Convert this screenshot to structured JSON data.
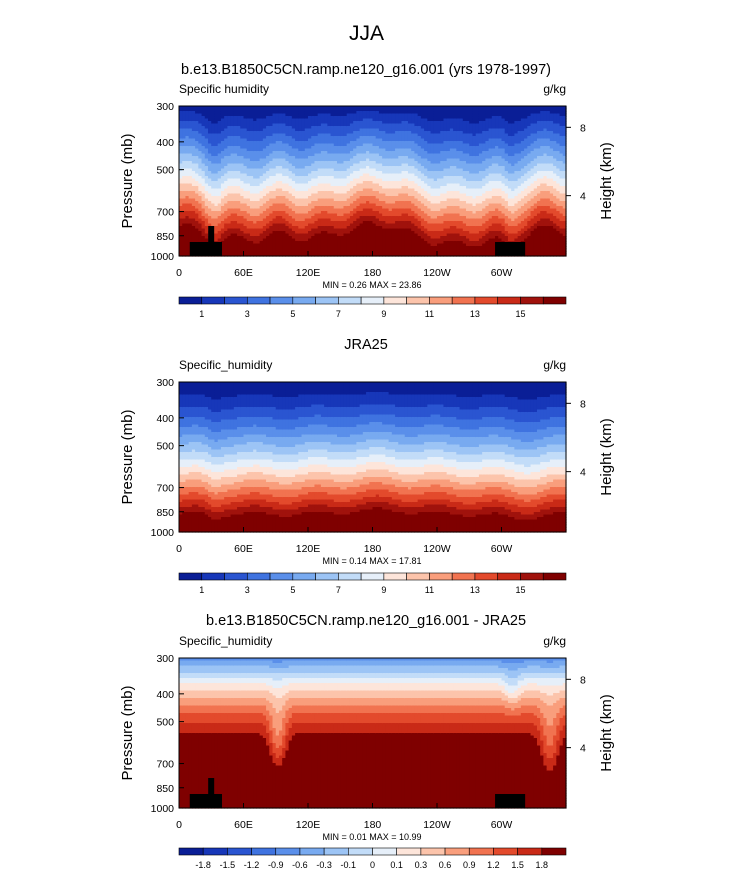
{
  "page_title": "JJA",
  "panels": [
    {
      "title": "b.e13.B1850C5CN.ramp.ne120_g16.001 (yrs 1978-1997)",
      "left_label": "Specific humidity",
      "right_label": "g/kg",
      "ylabel": "Pressure (mb)",
      "ylabel_right": "Height (km)",
      "stats": "MIN =   0.26  MAX =  23.86",
      "colorbar_labels": [
        "1",
        "3",
        "5",
        "7",
        "9",
        "11",
        "13",
        "15"
      ],
      "colors": [
        "#0a1e96",
        "#1737b9",
        "#2a55d1",
        "#3f73e0",
        "#5a8fea",
        "#78aaf0",
        "#9cc4f5",
        "#c2dcf8",
        "#e6eff9",
        "#fde5da",
        "#fcc4ab",
        "#f99e7c",
        "#f17350",
        "#e34a2c",
        "#c92a17",
        "#a0120c",
        "#7f0000"
      ],
      "mountain_boxes": [
        [
          10,
          40
        ],
        [
          294,
          322
        ]
      ],
      "mountain_peaks": [
        [
          29,
          32
        ]
      ],
      "field": "model"
    },
    {
      "title": "JRA25",
      "left_label": "Specific_humidity",
      "right_label": "g/kg",
      "ylabel": "Pressure (mb)",
      "ylabel_right": "Height (km)",
      "stats": "MIN =   0.14  MAX =  17.81",
      "colorbar_labels": [
        "1",
        "3",
        "5",
        "7",
        "9",
        "11",
        "13",
        "15"
      ],
      "colors": [
        "#0a1e96",
        "#1737b9",
        "#2a55d1",
        "#3f73e0",
        "#5a8fea",
        "#78aaf0",
        "#9cc4f5",
        "#c2dcf8",
        "#e6eff9",
        "#fde5da",
        "#fcc4ab",
        "#f99e7c",
        "#f17350",
        "#e34a2c",
        "#c92a17",
        "#a0120c",
        "#7f0000"
      ],
      "mountain_boxes": [],
      "mountain_peaks": [],
      "field": "obs"
    },
    {
      "title": "b.e13.B1850C5CN.ramp.ne120_g16.001 - JRA25",
      "left_label": "Specific_humidity",
      "right_label": "g/kg",
      "ylabel": "Pressure (mb)",
      "ylabel_right": "Height (km)",
      "stats": "MIN =   0.01  MAX =  10.99",
      "colorbar_labels": [
        "-1.8",
        "-1.5",
        "-1.2",
        "-0.9",
        "-0.6",
        "-0.3",
        "-0.1",
        "0",
        "0.1",
        "0.3",
        "0.6",
        "0.9",
        "1.2",
        "1.5",
        "1.8"
      ],
      "colors": [
        "#0a1e96",
        "#1737b9",
        "#2a55d1",
        "#3f73e0",
        "#5a8fea",
        "#78aaf0",
        "#9cc4f5",
        "#c2dcf8",
        "#e6eff9",
        "#fde5da",
        "#fcc4ab",
        "#f99e7c",
        "#f17350",
        "#e34a2c",
        "#c92a17",
        "#7f0000"
      ],
      "mountain_boxes": [
        [
          10,
          40
        ],
        [
          294,
          322
        ]
      ],
      "mountain_peaks": [
        [
          29,
          32
        ]
      ],
      "field": "diff"
    }
  ],
  "chart_data": [
    {
      "type": "heatmap",
      "title": "b.e13.B1850C5CN.ramp.ne120_g16.001 (yrs 1978-1997)",
      "xlabel": "",
      "ylabel": "Pressure (mb)",
      "ylabel_right": "Height (km)",
      "x_ticks": [
        "0",
        "60E",
        "120E",
        "180",
        "120W",
        "60W"
      ],
      "x_tick_values": [
        0,
        60,
        120,
        180,
        240,
        300
      ],
      "xlim": [
        0,
        360
      ],
      "y_ticks": [
        "300",
        "400",
        "500",
        "700",
        "850",
        "1000"
      ],
      "y_tick_values": [
        300,
        400,
        500,
        700,
        850,
        1000
      ],
      "ylim": [
        1000,
        300
      ],
      "y_scale": "log",
      "right_ticks": [
        "8",
        "4"
      ],
      "right_tick_values": [
        8,
        4
      ],
      "levels": [
        1,
        2,
        3,
        4,
        5,
        6,
        7,
        8,
        9,
        10,
        11,
        12,
        13,
        14,
        15,
        16
      ],
      "min": 0.26,
      "max": 23.86,
      "units": "g/kg"
    },
    {
      "type": "heatmap",
      "title": "JRA25",
      "xlabel": "",
      "ylabel": "Pressure (mb)",
      "ylabel_right": "Height (km)",
      "x_ticks": [
        "0",
        "60E",
        "120E",
        "180",
        "120W",
        "60W"
      ],
      "x_tick_values": [
        0,
        60,
        120,
        180,
        240,
        300
      ],
      "xlim": [
        0,
        360
      ],
      "y_ticks": [
        "300",
        "400",
        "500",
        "700",
        "850",
        "1000"
      ],
      "y_tick_values": [
        300,
        400,
        500,
        700,
        850,
        1000
      ],
      "ylim": [
        1000,
        300
      ],
      "y_scale": "log",
      "right_ticks": [
        "8",
        "4"
      ],
      "right_tick_values": [
        8,
        4
      ],
      "levels": [
        1,
        2,
        3,
        4,
        5,
        6,
        7,
        8,
        9,
        10,
        11,
        12,
        13,
        14,
        15,
        16
      ],
      "min": 0.14,
      "max": 17.81,
      "units": "g/kg"
    },
    {
      "type": "heatmap",
      "title": "b.e13.B1850C5CN.ramp.ne120_g16.001 - JRA25",
      "xlabel": "",
      "ylabel": "Pressure (mb)",
      "ylabel_right": "Height (km)",
      "x_ticks": [
        "0",
        "60E",
        "120E",
        "180",
        "120W",
        "60W"
      ],
      "x_tick_values": [
        0,
        60,
        120,
        180,
        240,
        300
      ],
      "xlim": [
        0,
        360
      ],
      "y_ticks": [
        "300",
        "400",
        "500",
        "700",
        "850",
        "1000"
      ],
      "y_tick_values": [
        300,
        400,
        500,
        700,
        850,
        1000
      ],
      "ylim": [
        1000,
        300
      ],
      "y_scale": "log",
      "right_ticks": [
        "8",
        "4"
      ],
      "right_tick_values": [
        8,
        4
      ],
      "levels": [
        -1.8,
        -1.5,
        -1.2,
        -0.9,
        -0.6,
        -0.3,
        -0.1,
        0,
        0.1,
        0.3,
        0.6,
        0.9,
        1.2,
        1.5,
        1.8
      ],
      "min": 0.01,
      "max": 10.99,
      "units": "g/kg"
    }
  ]
}
